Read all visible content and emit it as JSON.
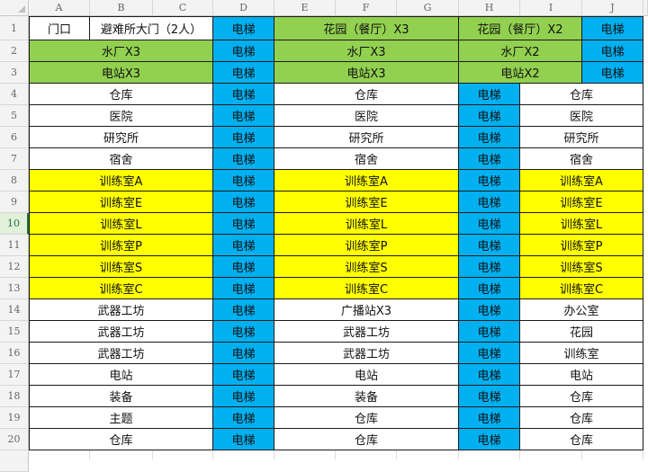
{
  "columns": [
    "A",
    "B",
    "C",
    "D",
    "E",
    "F",
    "G",
    "H",
    "I",
    "J"
  ],
  "selected_row": 10,
  "colors": {
    "white": "#ffffff",
    "blue": "#00b0f0",
    "green": "#92d050",
    "yellow": "#ffff00"
  },
  "rows": [
    {
      "n": "1",
      "cells": [
        {
          "text": "门口",
          "span": 1,
          "fill": "white"
        },
        {
          "text": "避难所大门（2人）",
          "span": 2,
          "fill": "white"
        },
        {
          "text": "电梯",
          "span": 1,
          "fill": "blue"
        },
        {
          "text": "花园（餐厅）X3",
          "span": 3,
          "fill": "green"
        },
        {
          "text": "花园（餐厅）X2",
          "span": 2,
          "fill": "green"
        },
        {
          "text": "电梯",
          "span": 1,
          "fill": "blue"
        }
      ]
    },
    {
      "n": "2",
      "cells": [
        {
          "text": "水厂X3",
          "span": 3,
          "fill": "green"
        },
        {
          "text": "电梯",
          "span": 1,
          "fill": "blue"
        },
        {
          "text": "水厂X3",
          "span": 3,
          "fill": "green"
        },
        {
          "text": "水厂X2",
          "span": 2,
          "fill": "green"
        },
        {
          "text": "电梯",
          "span": 1,
          "fill": "blue"
        }
      ]
    },
    {
      "n": "3",
      "cells": [
        {
          "text": "电站X3",
          "span": 3,
          "fill": "green"
        },
        {
          "text": "电梯",
          "span": 1,
          "fill": "blue"
        },
        {
          "text": "电站X3",
          "span": 3,
          "fill": "green"
        },
        {
          "text": "电站X2",
          "span": 2,
          "fill": "green"
        },
        {
          "text": "电梯",
          "span": 1,
          "fill": "blue"
        }
      ]
    },
    {
      "n": "4",
      "cells": [
        {
          "text": "仓库",
          "span": 3,
          "fill": "white"
        },
        {
          "text": "电梯",
          "span": 1,
          "fill": "blue"
        },
        {
          "text": "仓库",
          "span": 3,
          "fill": "white"
        },
        {
          "text": "电梯",
          "span": 1,
          "fill": "blue"
        },
        {
          "text": "仓库",
          "span": 2,
          "fill": "white"
        }
      ]
    },
    {
      "n": "5",
      "cells": [
        {
          "text": "医院",
          "span": 3,
          "fill": "white"
        },
        {
          "text": "电梯",
          "span": 1,
          "fill": "blue"
        },
        {
          "text": "医院",
          "span": 3,
          "fill": "white"
        },
        {
          "text": "电梯",
          "span": 1,
          "fill": "blue"
        },
        {
          "text": "医院",
          "span": 2,
          "fill": "white"
        }
      ]
    },
    {
      "n": "6",
      "cells": [
        {
          "text": "研究所",
          "span": 3,
          "fill": "white"
        },
        {
          "text": "电梯",
          "span": 1,
          "fill": "blue"
        },
        {
          "text": "研究所",
          "span": 3,
          "fill": "white"
        },
        {
          "text": "电梯",
          "span": 1,
          "fill": "blue"
        },
        {
          "text": "研究所",
          "span": 2,
          "fill": "white"
        }
      ]
    },
    {
      "n": "7",
      "cells": [
        {
          "text": "宿舍",
          "span": 3,
          "fill": "white"
        },
        {
          "text": "电梯",
          "span": 1,
          "fill": "blue"
        },
        {
          "text": "宿舍",
          "span": 3,
          "fill": "white"
        },
        {
          "text": "电梯",
          "span": 1,
          "fill": "blue"
        },
        {
          "text": "宿舍",
          "span": 2,
          "fill": "white"
        }
      ]
    },
    {
      "n": "8",
      "cells": [
        {
          "text": "训练室A",
          "span": 3,
          "fill": "yellow"
        },
        {
          "text": "电梯",
          "span": 1,
          "fill": "blue"
        },
        {
          "text": "训练室A",
          "span": 3,
          "fill": "yellow"
        },
        {
          "text": "电梯",
          "span": 1,
          "fill": "blue"
        },
        {
          "text": "训练室A",
          "span": 2,
          "fill": "yellow"
        }
      ]
    },
    {
      "n": "9",
      "cells": [
        {
          "text": "训练室E",
          "span": 3,
          "fill": "yellow"
        },
        {
          "text": "电梯",
          "span": 1,
          "fill": "blue"
        },
        {
          "text": "训练室E",
          "span": 3,
          "fill": "yellow"
        },
        {
          "text": "电梯",
          "span": 1,
          "fill": "blue"
        },
        {
          "text": "训练室E",
          "span": 2,
          "fill": "yellow"
        }
      ]
    },
    {
      "n": "10",
      "cells": [
        {
          "text": "训练室L",
          "span": 3,
          "fill": "yellow"
        },
        {
          "text": "电梯",
          "span": 1,
          "fill": "blue"
        },
        {
          "text": "训练室L",
          "span": 3,
          "fill": "yellow"
        },
        {
          "text": "电梯",
          "span": 1,
          "fill": "blue"
        },
        {
          "text": "训练室L",
          "span": 2,
          "fill": "yellow"
        }
      ]
    },
    {
      "n": "11",
      "cells": [
        {
          "text": "训练室P",
          "span": 3,
          "fill": "yellow"
        },
        {
          "text": "电梯",
          "span": 1,
          "fill": "blue"
        },
        {
          "text": "训练室P",
          "span": 3,
          "fill": "yellow"
        },
        {
          "text": "电梯",
          "span": 1,
          "fill": "blue"
        },
        {
          "text": "训练室P",
          "span": 2,
          "fill": "yellow"
        }
      ]
    },
    {
      "n": "12",
      "cells": [
        {
          "text": "训练室S",
          "span": 3,
          "fill": "yellow"
        },
        {
          "text": "电梯",
          "span": 1,
          "fill": "blue"
        },
        {
          "text": "训练室S",
          "span": 3,
          "fill": "yellow"
        },
        {
          "text": "电梯",
          "span": 1,
          "fill": "blue"
        },
        {
          "text": "训练室S",
          "span": 2,
          "fill": "yellow"
        }
      ]
    },
    {
      "n": "13",
      "cells": [
        {
          "text": "训练室C",
          "span": 3,
          "fill": "yellow"
        },
        {
          "text": "电梯",
          "span": 1,
          "fill": "blue"
        },
        {
          "text": "训练室C",
          "span": 3,
          "fill": "yellow"
        },
        {
          "text": "电梯",
          "span": 1,
          "fill": "blue"
        },
        {
          "text": "训练室C",
          "span": 2,
          "fill": "yellow"
        }
      ]
    },
    {
      "n": "14",
      "cells": [
        {
          "text": "武器工坊",
          "span": 3,
          "fill": "white"
        },
        {
          "text": "电梯",
          "span": 1,
          "fill": "blue"
        },
        {
          "text": "广播站X3",
          "span": 3,
          "fill": "white"
        },
        {
          "text": "电梯",
          "span": 1,
          "fill": "blue"
        },
        {
          "text": "办公室",
          "span": 2,
          "fill": "white"
        }
      ]
    },
    {
      "n": "15",
      "cells": [
        {
          "text": "武器工坊",
          "span": 3,
          "fill": "white"
        },
        {
          "text": "电梯",
          "span": 1,
          "fill": "blue"
        },
        {
          "text": "武器工坊",
          "span": 3,
          "fill": "white"
        },
        {
          "text": "电梯",
          "span": 1,
          "fill": "blue"
        },
        {
          "text": "花园",
          "span": 2,
          "fill": "white"
        }
      ]
    },
    {
      "n": "16",
      "cells": [
        {
          "text": "武器工坊",
          "span": 3,
          "fill": "white"
        },
        {
          "text": "电梯",
          "span": 1,
          "fill": "blue"
        },
        {
          "text": "武器工坊",
          "span": 3,
          "fill": "white"
        },
        {
          "text": "电梯",
          "span": 1,
          "fill": "blue"
        },
        {
          "text": "训练室",
          "span": 2,
          "fill": "white"
        }
      ]
    },
    {
      "n": "17",
      "cells": [
        {
          "text": "电站",
          "span": 3,
          "fill": "white"
        },
        {
          "text": "电梯",
          "span": 1,
          "fill": "blue"
        },
        {
          "text": "电站",
          "span": 3,
          "fill": "white"
        },
        {
          "text": "电梯",
          "span": 1,
          "fill": "blue"
        },
        {
          "text": "电站",
          "span": 2,
          "fill": "white"
        }
      ]
    },
    {
      "n": "18",
      "cells": [
        {
          "text": "装备",
          "span": 3,
          "fill": "white"
        },
        {
          "text": "电梯",
          "span": 1,
          "fill": "blue"
        },
        {
          "text": "装备",
          "span": 3,
          "fill": "white"
        },
        {
          "text": "电梯",
          "span": 1,
          "fill": "blue"
        },
        {
          "text": "仓库",
          "span": 2,
          "fill": "white"
        }
      ]
    },
    {
      "n": "19",
      "cells": [
        {
          "text": "主题",
          "span": 3,
          "fill": "white"
        },
        {
          "text": "电梯",
          "span": 1,
          "fill": "blue"
        },
        {
          "text": "仓库",
          "span": 3,
          "fill": "white"
        },
        {
          "text": "电梯",
          "span": 1,
          "fill": "blue"
        },
        {
          "text": "仓库",
          "span": 2,
          "fill": "white"
        }
      ]
    },
    {
      "n": "20",
      "cells": [
        {
          "text": "仓库",
          "span": 3,
          "fill": "white"
        },
        {
          "text": "电梯",
          "span": 1,
          "fill": "blue"
        },
        {
          "text": "仓库",
          "span": 3,
          "fill": "white"
        },
        {
          "text": "电梯",
          "span": 1,
          "fill": "blue"
        },
        {
          "text": "仓库",
          "span": 2,
          "fill": "white"
        }
      ]
    }
  ]
}
